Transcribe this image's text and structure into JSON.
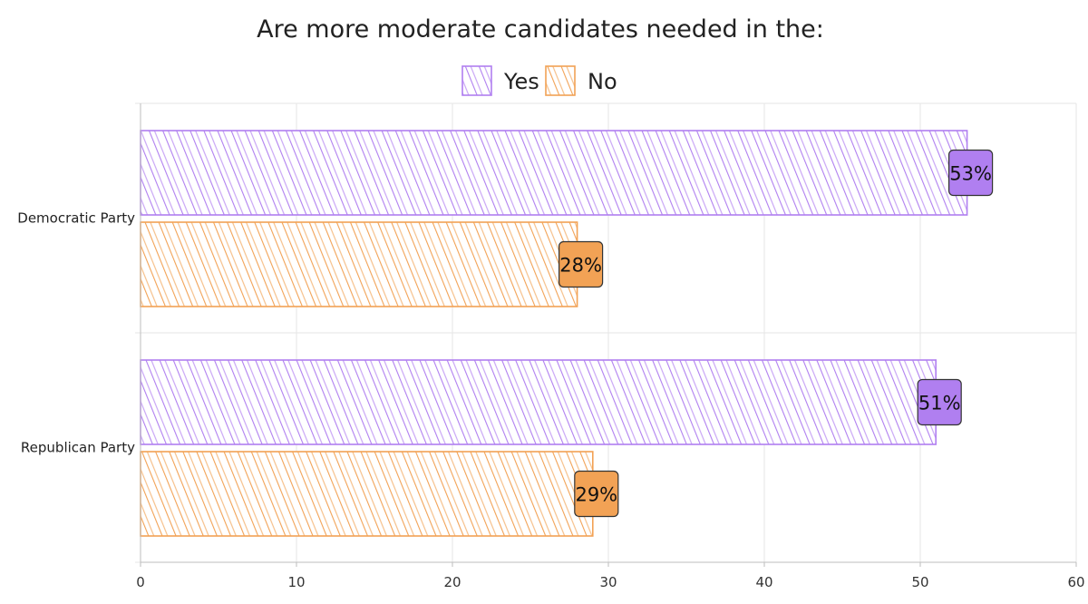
{
  "chart_data": {
    "type": "bar",
    "orientation": "horizontal",
    "title": "Are more moderate candidates needed in the:",
    "categories": [
      "Democratic Party",
      "Republican Party"
    ],
    "series": [
      {
        "name": "Yes",
        "values": [
          53,
          51
        ],
        "labels": [
          "53%",
          "51%"
        ],
        "color": "#b07ff0"
      },
      {
        "name": "No",
        "values": [
          28,
          29
        ],
        "labels": [
          "28%",
          "29%"
        ],
        "color": "#f2a255"
      }
    ],
    "xlim": [
      0,
      60
    ],
    "xticks": [
      "0",
      "10",
      "20",
      "30",
      "40",
      "50",
      "60"
    ],
    "grid": true,
    "legend_position": "top"
  }
}
